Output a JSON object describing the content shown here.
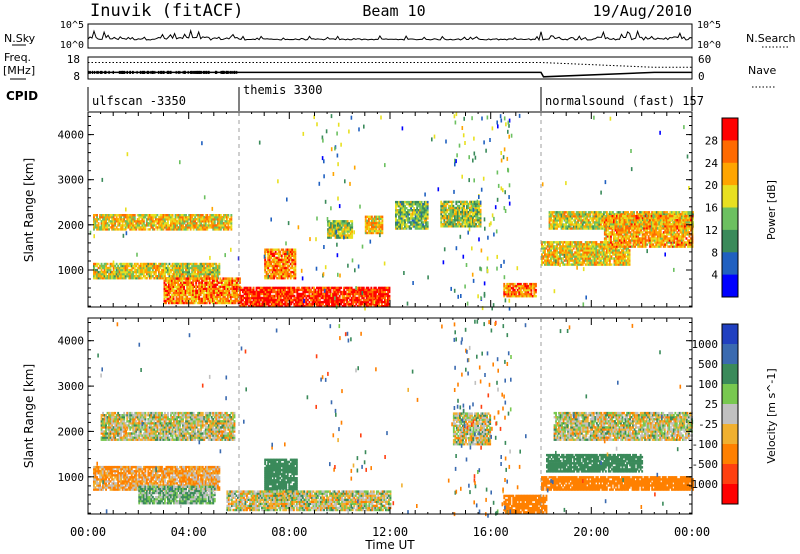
{
  "header": {
    "station": "Inuvik (fitACF)",
    "beam": "Beam 10",
    "date": "19/Aug/2010"
  },
  "nsky_panel": {
    "left_label": "N.Sky",
    "right_label": "N.Search",
    "left_ticks": [
      "10^5",
      "10^0"
    ],
    "right_ticks": [
      "10^5",
      "10^0"
    ]
  },
  "freq_panel": {
    "left_label_line1": "Freq.",
    "left_label_line2": "[MHz]",
    "right_label": "Nave",
    "left_ticks": [
      "18",
      "8"
    ],
    "right_ticks": [
      "60",
      "0"
    ]
  },
  "cpid_panel": {
    "label": "CPID",
    "segments": [
      {
        "name": "ulfscan -3350",
        "start_hour": 0
      },
      {
        "name": "themis 3300",
        "start_hour": 6
      },
      {
        "name": "normalsound (fast) 157",
        "start_hour": 18
      }
    ]
  },
  "power_panel": {
    "ylabel": "Slant Range [km]",
    "cbar_label": "Power [dB]",
    "cbar_ticks": [
      "28",
      "24",
      "20",
      "16",
      "12",
      "8",
      "4"
    ],
    "colors": {
      "28": "#ff0000",
      "24": "#ff6a00",
      "20": "#ffa500",
      "16": "#e8e020",
      "12": "#6cc060",
      "8": "#3a8a5a",
      "4": "#2060c0",
      "0": "#0000ff"
    }
  },
  "velocity_panel": {
    "ylabel": "Slant Range [km]",
    "cbar_label": "Velocity [m s^-1]",
    "cbar_ticks": [
      "1000",
      "500",
      "100",
      "25",
      "-25",
      "-100",
      "-500",
      "-1000"
    ],
    "colors": {
      "1000": "#2040c0",
      "500": "#3a6ab0",
      "100": "#3a8a5a",
      "25": "#78c850",
      "0": "#c0c0c0",
      "-25": "#f0b030",
      "-100": "#ff8000",
      "-500": "#ff4010",
      "-1000": "#ff0000"
    }
  },
  "x_axis": {
    "label": "Time UT",
    "ticks": [
      "00:00",
      "04:00",
      "08:00",
      "12:00",
      "16:00",
      "20:00",
      "00:00"
    ]
  },
  "y_axis_ticks": [
    "4000",
    "3000",
    "2000",
    "1000"
  ],
  "chart_data": [
    {
      "type": "line",
      "title": "N.Sky / N.Search",
      "x_range_hours": [
        0,
        24
      ],
      "y_scale": "log",
      "ylim": [
        1,
        100000
      ]
    },
    {
      "type": "line",
      "title": "Freq. / Nave",
      "series": [
        {
          "name": "Freq.",
          "x": [
            0,
            6,
            18,
            18.1,
            22.5,
            23.5,
            24
          ],
          "values": [
            11,
            11,
            11,
            9,
            11,
            11,
            11
          ]
        },
        {
          "name": "Nave",
          "x": [
            0,
            6,
            18,
            22.5,
            24
          ],
          "values": [
            45,
            45,
            45,
            32,
            32
          ]
        }
      ],
      "ylim": [
        8,
        18
      ]
    },
    {
      "type": "heatmap",
      "title": "Power [dB]",
      "xlabel": "Time UT",
      "ylabel": "Slant Range [km]",
      "xlim": [
        0,
        24
      ],
      "ylim": [
        180,
        4500
      ],
      "z_range": [
        0,
        30
      ],
      "regions": [
        {
          "t0": 0.2,
          "t1": 5.7,
          "r0": 1880,
          "r1": 2200,
          "value": 18
        },
        {
          "t0": 0.2,
          "t1": 5.2,
          "r0": 800,
          "r1": 1150,
          "value": 16
        },
        {
          "t0": 3.0,
          "t1": 6.0,
          "r0": 250,
          "r1": 800,
          "value": 22
        },
        {
          "t0": 6.0,
          "t1": 12.0,
          "r0": 180,
          "r1": 600,
          "value": 28
        },
        {
          "t0": 7.0,
          "t1": 8.2,
          "r0": 800,
          "r1": 1450,
          "value": 22
        },
        {
          "t0": 9.5,
          "t1": 10.5,
          "r0": 1700,
          "r1": 2100,
          "value": 14
        },
        {
          "t0": 11.0,
          "t1": 11.7,
          "r0": 1800,
          "r1": 2200,
          "value": 18
        },
        {
          "t0": 12.2,
          "t1": 13.5,
          "r0": 1900,
          "r1": 2500,
          "value": 12
        },
        {
          "t0": 14.0,
          "t1": 15.6,
          "r0": 1950,
          "r1": 2500,
          "value": 14
        },
        {
          "t0": 16.5,
          "t1": 17.8,
          "r0": 400,
          "r1": 700,
          "value": 22
        },
        {
          "t0": 18.0,
          "t1": 21.5,
          "r0": 1100,
          "r1": 1600,
          "value": 18
        },
        {
          "t0": 18.3,
          "t1": 24.0,
          "r0": 1900,
          "r1": 2300,
          "value": 16
        },
        {
          "t0": 20.5,
          "t1": 24.0,
          "r0": 1500,
          "r1": 2200,
          "value": 20
        }
      ]
    },
    {
      "type": "heatmap",
      "title": "Velocity [m s^-1]",
      "xlabel": "Time UT",
      "ylabel": "Slant Range [km]",
      "xlim": [
        0,
        24
      ],
      "ylim": [
        180,
        4500
      ],
      "z_range": [
        -1000,
        1000
      ],
      "regions": [
        {
          "t0": 0.5,
          "t1": 5.8,
          "r0": 1800,
          "r1": 2400,
          "value": 0
        },
        {
          "t0": 0.2,
          "t1": 5.2,
          "r0": 700,
          "r1": 1200,
          "value": -60
        },
        {
          "t0": 2.0,
          "t1": 5.0,
          "r0": 400,
          "r1": 800,
          "value": 60
        },
        {
          "t0": 7.0,
          "t1": 8.3,
          "r0": 500,
          "r1": 1400,
          "value": 200
        },
        {
          "t0": 5.5,
          "t1": 12.0,
          "r0": 250,
          "r1": 700,
          "value": 0
        },
        {
          "t0": 14.5,
          "t1": 16.0,
          "r0": 1700,
          "r1": 2400,
          "value": 0
        },
        {
          "t0": 16.5,
          "t1": 18.2,
          "r0": 200,
          "r1": 600,
          "value": -200
        },
        {
          "t0": 18.2,
          "t1": 22.0,
          "r0": 1100,
          "r1": 1500,
          "value": 200
        },
        {
          "t0": 18.0,
          "t1": 24.0,
          "r0": 700,
          "r1": 1000,
          "value": -200
        },
        {
          "t0": 18.5,
          "t1": 24.0,
          "r0": 1800,
          "r1": 2400,
          "value": 0
        }
      ]
    }
  ]
}
